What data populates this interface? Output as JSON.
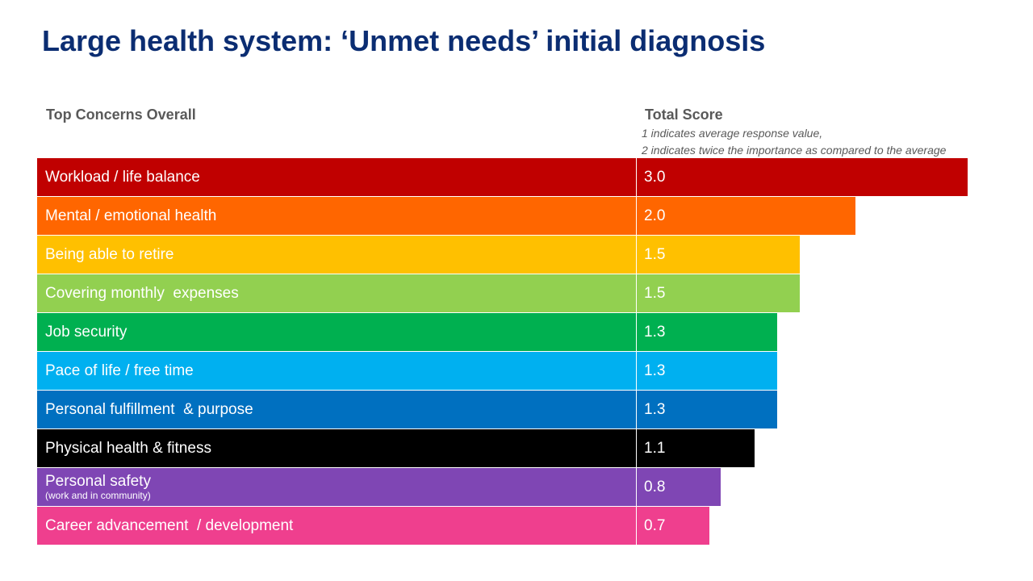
{
  "title": "Large health system: ‘Unmet needs’ initial diagnosis",
  "headers": {
    "concerns": "Top Concerns Overall",
    "score": "Total Score",
    "note_line1": "1 indicates average response value,",
    "note_line2": "2 indicates twice the importance as compared to the average"
  },
  "chart_data": {
    "type": "bar",
    "title": "Large health system: ‘Unmet needs’ initial diagnosis",
    "xlabel": "Total Score",
    "ylabel": "Top Concerns Overall",
    "categories": [
      "Workload / life balance",
      "Mental / emotional health",
      "Being able to retire",
      "Covering monthly  expenses",
      "Job security",
      "Pace of life / free time",
      "Personal fulfillment  & purpose",
      "Physical health & fitness",
      "Personal safety",
      "Career advancement  / development"
    ],
    "values": [
      3.0,
      2.0,
      1.5,
      1.5,
      1.3,
      1.3,
      1.3,
      1.1,
      0.8,
      0.7
    ],
    "value_labels": [
      "3.0",
      "2.0",
      "1.5",
      "1.5",
      "1.3",
      "1.3",
      "1.3",
      "1.1",
      "0.8",
      "0.7"
    ],
    "sublabels": [
      "",
      "",
      "",
      "",
      "",
      "",
      "",
      "",
      "(work and in community)",
      ""
    ],
    "colors": [
      "#c00000",
      "#ff6600",
      "#ffc000",
      "#92d050",
      "#00b050",
      "#00b0f0",
      "#0070c0",
      "#000000",
      "#7f46b4",
      "#ef3f8e"
    ]
  }
}
